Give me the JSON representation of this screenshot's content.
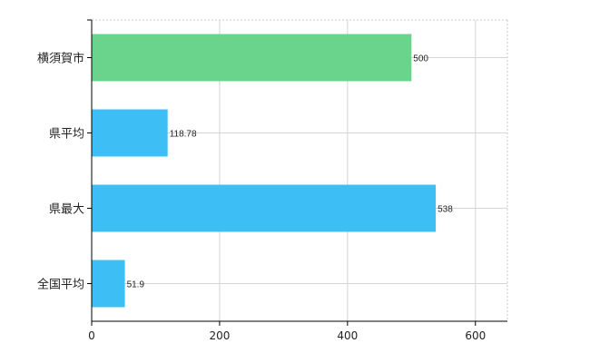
{
  "chart_data": {
    "type": "bar",
    "orientation": "horizontal",
    "categories": [
      "横須賀市",
      "県平均",
      "県最大",
      "全国平均"
    ],
    "values": [
      500,
      118.78,
      538,
      51.9
    ],
    "value_labels": [
      "500",
      "118.78",
      "538",
      "51.9"
    ],
    "bar_colors": [
      "#6ad48c",
      "#3dbff5",
      "#3dbff5",
      "#3dbff5"
    ],
    "title": "",
    "xlabel": "",
    "ylabel": "",
    "xlim": [
      0,
      650
    ],
    "xticks": [
      0,
      200,
      400,
      600
    ],
    "grid": true,
    "legend": "none"
  }
}
